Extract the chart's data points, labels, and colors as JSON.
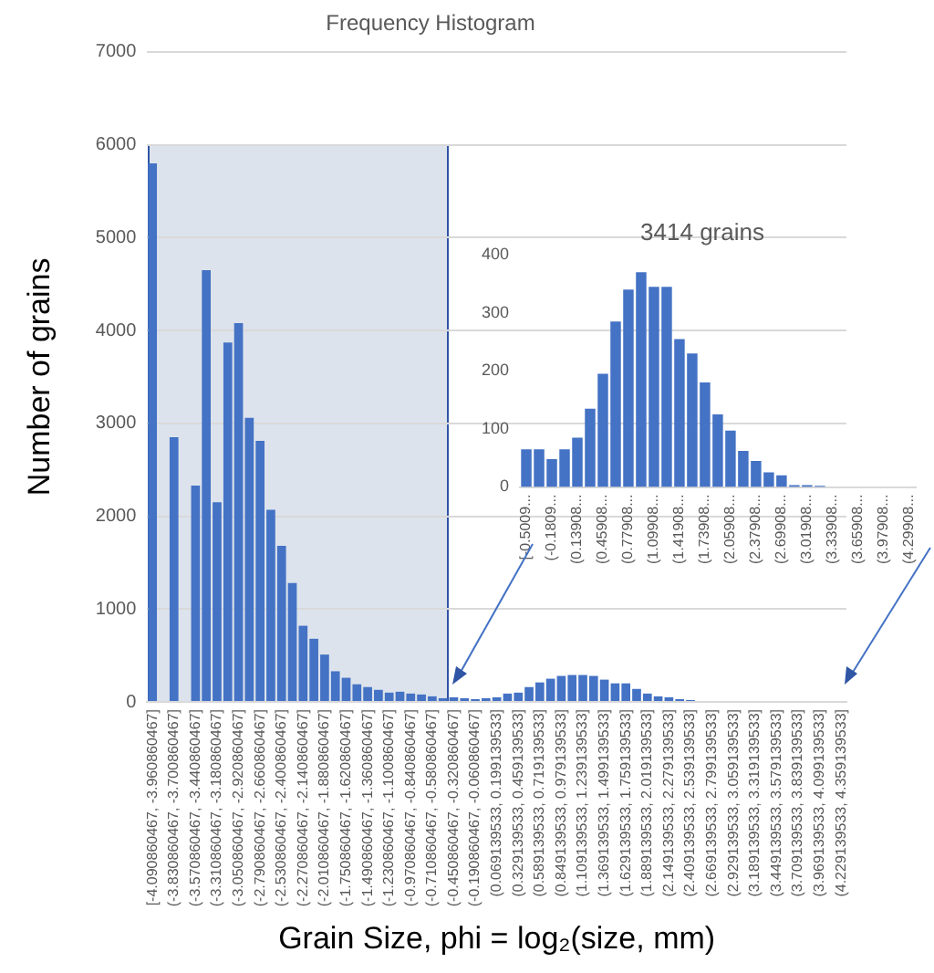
{
  "chart_data": [
    {
      "type": "bar",
      "title": "Frequency Histogram",
      "xlabel": "Grain Size, phi = log₂(size, mm)",
      "ylabel": "Number of grains",
      "categories": [
        "[-4.090860467, -3.960860467]",
        null,
        "(-3.830860467, -3.700860467]",
        null,
        "(-3.570860467, -3.440860467]",
        null,
        "(-3.310860467, -3.180860467]",
        null,
        "(-3.050860467, -2.920860467]",
        null,
        "(-2.790860467, -2.660860467]",
        null,
        "(-2.530860467, -2.400860467]",
        null,
        "(-2.270860467, -2.140860467]",
        null,
        "(-2.010860467, -1.880860467]",
        null,
        "(-1.750860467, -1.620860467]",
        null,
        "(-1.490860467, -1.360860467]",
        null,
        "(-1.230860467, -1.100860467]",
        null,
        "(-0.970860467, -0.840860467]",
        null,
        "(-0.710860467, -0.580860467]",
        null,
        "(-0.450860467, -0.320860467]",
        null,
        "(-0.190860467, -0.060860467]",
        null,
        "(0.069139533, 0.199139533]",
        null,
        "(0.329139533, 0.459139533]",
        null,
        "(0.589139533, 0.719139533]",
        null,
        "(0.849139533, 0.979139533]",
        null,
        "(1.109139533, 1.239139533]",
        null,
        "(1.369139533, 1.499139533]",
        null,
        "(1.629139533, 1.759139533]",
        null,
        "(1.889139533, 2.019139533]",
        null,
        "(2.149139533, 2.279139533]",
        null,
        "(2.409139533, 2.539139533]",
        null,
        "(2.669139533, 2.799139533]",
        null,
        "(2.929139533, 3.059139533]",
        null,
        "(3.189139533, 3.319139533]",
        null,
        "(3.449139533, 3.579139533]",
        null,
        "(3.709139533, 3.839139533]",
        null,
        "(3.969139533, 4.099139533]",
        null,
        "(4.229139533, 4.359139533]"
      ],
      "values": [
        5800,
        0,
        2850,
        0,
        2330,
        4650,
        2150,
        3870,
        4080,
        3060,
        2810,
        2070,
        1680,
        1280,
        820,
        680,
        510,
        330,
        260,
        190,
        160,
        130,
        100,
        110,
        90,
        80,
        60,
        40,
        50,
        40,
        30,
        40,
        50,
        90,
        100,
        160,
        210,
        250,
        280,
        290,
        290,
        280,
        240,
        200,
        200,
        140,
        90,
        60,
        50,
        30,
        20,
        10,
        0,
        0,
        0,
        0,
        0,
        0,
        0,
        0,
        0,
        0,
        0,
        0,
        0
      ],
      "color": "#4472c4",
      "ylim": [
        0,
        7000
      ],
      "yticks": [
        0,
        1000,
        2000,
        3000,
        4000,
        5000,
        6000,
        7000
      ],
      "grid": "y"
    },
    {
      "type": "bar",
      "title": "3414 grains",
      "categories": [
        "[-0.5009...",
        null,
        "(-0.1809...",
        null,
        "(0.13908...",
        null,
        "(0.45908...",
        null,
        "(0.77908...",
        null,
        "(1.09908...",
        null,
        "(1.41908...",
        null,
        "(1.73908...",
        null,
        "(2.05908...",
        null,
        "(2.37908...",
        null,
        "(2.69908...",
        null,
        "(3.01908...",
        null,
        "(3.33908...",
        null,
        "(3.65908...",
        null,
        "(3.97908...",
        null,
        "(4.29908..."
      ],
      "values": [
        65,
        65,
        48,
        65,
        85,
        135,
        195,
        285,
        340,
        370,
        345,
        345,
        255,
        230,
        180,
        125,
        97,
        62,
        45,
        25,
        20,
        3,
        3,
        2,
        0,
        0,
        0,
        0,
        0,
        0,
        0
      ],
      "color": "#4472c4",
      "ylim": [
        0,
        400
      ],
      "yticks": [
        0,
        100,
        200,
        300,
        400
      ]
    }
  ]
}
